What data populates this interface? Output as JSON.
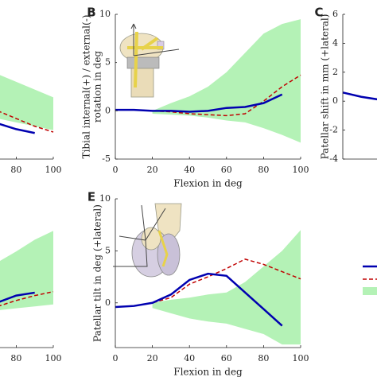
{
  "chart_data": [
    {
      "type": "line",
      "xlim": [
        0,
        100
      ],
      "ylim": [
        -5,
        10
      ],
      "xticks": [
        80,
        100
      ],
      "x": [
        70,
        80,
        90,
        100
      ],
      "series": [
        {
          "kind": "band",
          "color": "#b4f2b6",
          "upper": [
            3.8,
            3,
            2.2,
            1.4
          ],
          "lower": [
            -0.8,
            -1.2,
            -1.6,
            -2
          ]
        },
        {
          "color": "#c00000",
          "dash": true,
          "values": [
            0,
            -0.8,
            -1.6,
            -2.2
          ]
        },
        {
          "color": "#0000b0",
          "values": [
            -1.3,
            -1.9,
            -2.3,
            null
          ]
        }
      ]
    },
    {
      "type": "line",
      "panel": "B",
      "xlim": [
        0,
        100
      ],
      "ylim": [
        -5,
        10
      ],
      "xticks": [
        0,
        20,
        40,
        60,
        80,
        100
      ],
      "yticks": [
        -5,
        0,
        5,
        10
      ],
      "xlabel": "Flexion in deg",
      "ylabel": [
        "Tibial internal(+) / external(-)",
        "rotation in deg"
      ],
      "x": [
        0,
        10,
        20,
        30,
        40,
        50,
        60,
        70,
        80,
        90,
        100
      ],
      "series": [
        {
          "kind": "band",
          "color": "#b4f2b6",
          "upper": [
            null,
            null,
            0,
            0.8,
            1.5,
            2.5,
            4,
            6,
            8,
            9,
            9.5
          ],
          "lower": [
            null,
            null,
            -0.3,
            -0.4,
            -0.5,
            -0.7,
            -1,
            -1.2,
            -1.8,
            -2.5,
            -3.3
          ]
        },
        {
          "color": "#c00000",
          "dash": true,
          "values": [
            0.1,
            0.1,
            0,
            -0.1,
            -0.3,
            -0.4,
            -0.5,
            -0.3,
            1,
            2.5,
            3.7
          ]
        },
        {
          "color": "#0000b0",
          "values": [
            0.1,
            0.1,
            0,
            0,
            -0.1,
            0,
            0.3,
            0.4,
            0.8,
            1.7,
            null
          ]
        }
      ]
    },
    {
      "type": "line",
      "panel": "C",
      "xlim": [
        0,
        100
      ],
      "ylim": [
        -4,
        6
      ],
      "yticks": [
        -4,
        -2,
        0,
        2,
        4,
        6
      ],
      "ylabel": [
        "Patellar shift in mm (+lateral)"
      ],
      "x": [
        0,
        10,
        20
      ],
      "series": [
        {
          "color": "#0000b0",
          "values": [
            0.6,
            0.3,
            0.1
          ]
        }
      ]
    },
    {
      "type": "line",
      "xlim": [
        0,
        100
      ],
      "ylim": [
        -5,
        10
      ],
      "xticks": [
        80,
        100
      ],
      "x": [
        70,
        80,
        90,
        100
      ],
      "series": [
        {
          "kind": "band",
          "color": "#b4f2b6",
          "upper": [
            3.7,
            4.8,
            6,
            6.9
          ],
          "lower": [
            -1.2,
            -1,
            -0.8,
            -0.6
          ]
        },
        {
          "color": "#c00000",
          "dash": true,
          "values": [
            -0.8,
            -0.2,
            0.3,
            0.7
          ]
        },
        {
          "color": "#0000b0",
          "values": [
            -0.4,
            0.3,
            0.6,
            null
          ]
        }
      ]
    },
    {
      "type": "line",
      "panel": "E",
      "xlim": [
        0,
        100
      ],
      "ylim": [
        -4.3,
        10
      ],
      "xticks": [
        0,
        20,
        40,
        60,
        80,
        100
      ],
      "yticks": [
        0,
        5,
        10
      ],
      "xlabel": "Flexion in deg",
      "ylabel": [
        "Patellar tilt in deg (+lateral)"
      ],
      "x": [
        0,
        10,
        20,
        30,
        40,
        50,
        60,
        70,
        80,
        90,
        100
      ],
      "series": [
        {
          "kind": "band",
          "color": "#b4f2b6",
          "upper": [
            null,
            null,
            0,
            0.3,
            0.5,
            0.8,
            1,
            2,
            3.5,
            5,
            7
          ],
          "lower": [
            null,
            null,
            -0.5,
            -1,
            -1.5,
            -1.8,
            -2,
            -2.5,
            -3,
            -4,
            -4
          ]
        },
        {
          "color": "#c00000",
          "dash": true,
          "values": [
            -0.4,
            -0.3,
            0,
            0.5,
            1.8,
            2.5,
            3.3,
            4.2,
            3.7,
            3,
            2.3
          ]
        },
        {
          "color": "#0000b0",
          "values": [
            -0.4,
            -0.3,
            0,
            0.8,
            2.2,
            2.8,
            2.6,
            1,
            -0.6,
            -2.2,
            null
          ]
        }
      ]
    }
  ]
}
